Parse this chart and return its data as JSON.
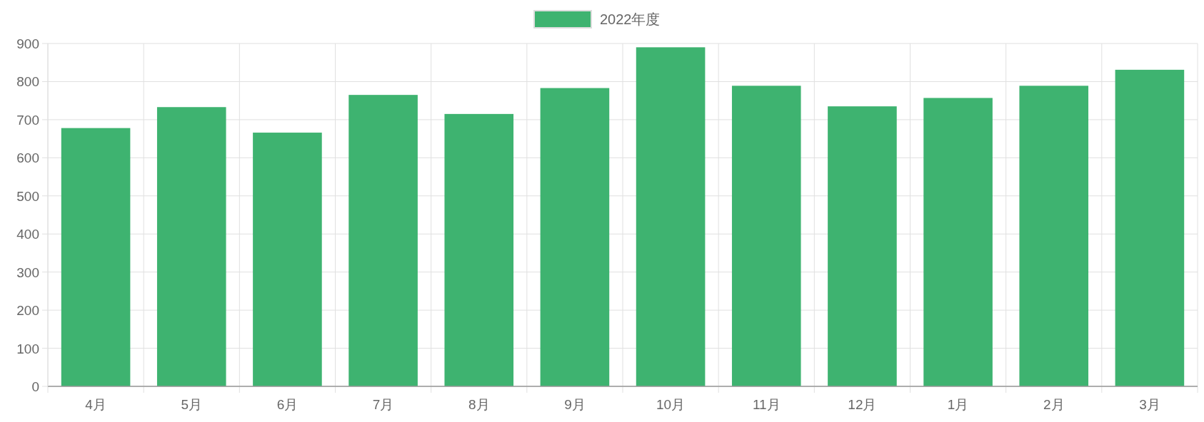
{
  "chart_data": {
    "type": "bar",
    "categories": [
      "4月",
      "5月",
      "6月",
      "7月",
      "8月",
      "9月",
      "10月",
      "11月",
      "12月",
      "1月",
      "2月",
      "3月"
    ],
    "series": [
      {
        "name": "2022年度",
        "color": "#3eb370",
        "values": [
          678,
          733,
          666,
          765,
          715,
          783,
          890,
          789,
          735,
          757,
          789,
          831
        ]
      }
    ],
    "ylim": [
      0,
      900
    ],
    "yticks": [
      0,
      100,
      200,
      300,
      400,
      500,
      600,
      700,
      800,
      900
    ],
    "grid": true,
    "legend": "top"
  }
}
